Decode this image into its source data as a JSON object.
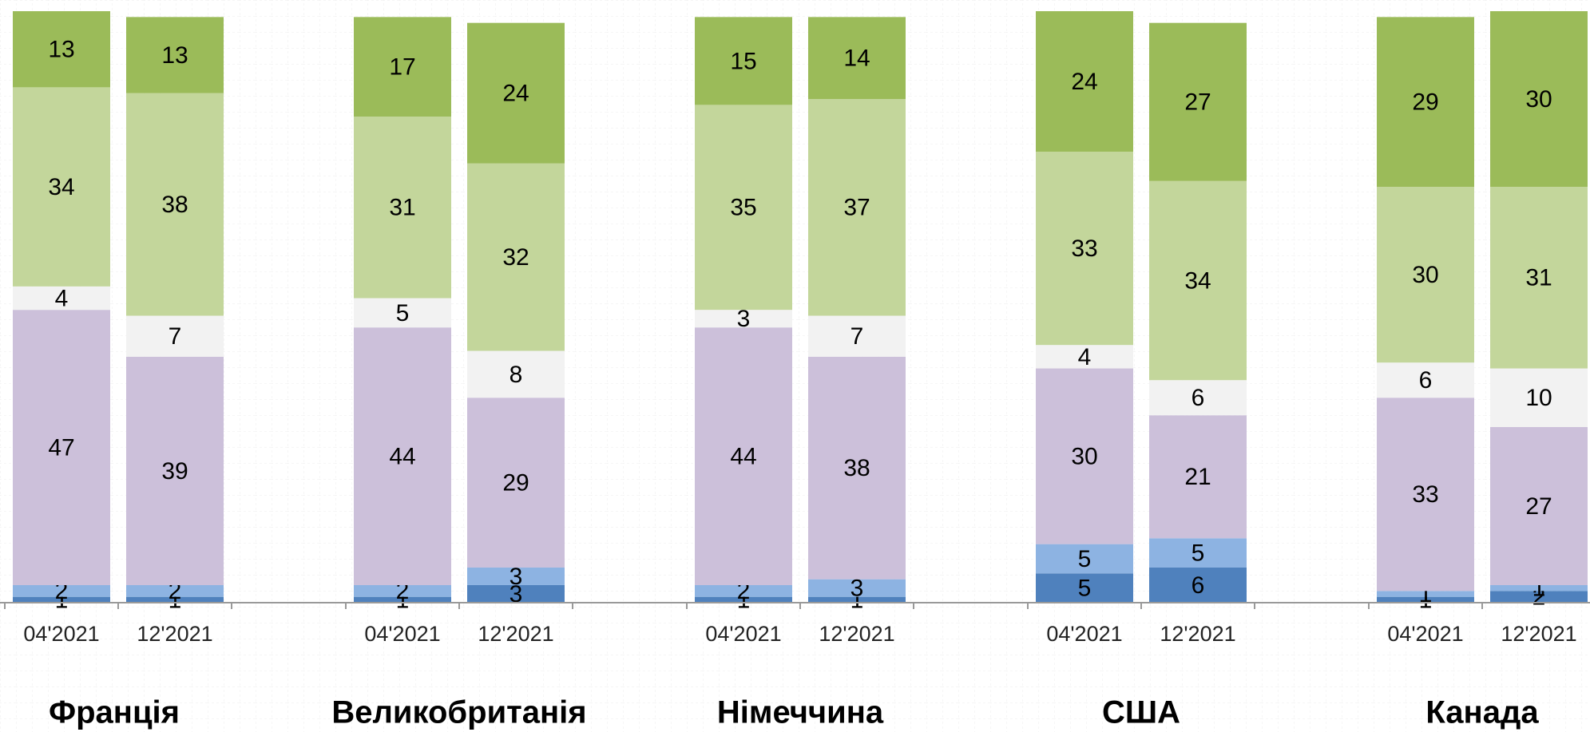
{
  "chart_data": {
    "type": "stacked-bar",
    "groups": [
      "Франція",
      "Великобританія",
      "Німеччина",
      "США",
      "Канада"
    ],
    "categories": [
      "04'2021",
      "12'2021",
      "04'2021",
      "12'2021",
      "04'2021",
      "12'2021",
      "04'2021",
      "12'2021",
      "04'2021",
      "12'2021"
    ],
    "series": [
      {
        "color": "#4f81bd",
        "values": [
          1,
          1,
          1,
          3,
          1,
          1,
          5,
          6,
          1,
          2
        ]
      },
      {
        "color": "#8db3e2",
        "values": [
          2,
          2,
          2,
          3,
          2,
          3,
          5,
          5,
          1,
          1
        ]
      },
      {
        "color": "#ccc0da",
        "values": [
          47,
          39,
          44,
          29,
          44,
          38,
          30,
          21,
          33,
          27
        ]
      },
      {
        "color": "#f2f2f2",
        "values": [
          4,
          7,
          5,
          8,
          3,
          7,
          4,
          6,
          6,
          10
        ]
      },
      {
        "color": "#c3d69b",
        "values": [
          34,
          38,
          31,
          32,
          35,
          37,
          33,
          34,
          30,
          31
        ]
      },
      {
        "color": "#9bbb59",
        "values": [
          13,
          13,
          17,
          24,
          15,
          14,
          24,
          27,
          29,
          30
        ]
      }
    ],
    "ylim": [
      0,
      101
    ]
  }
}
